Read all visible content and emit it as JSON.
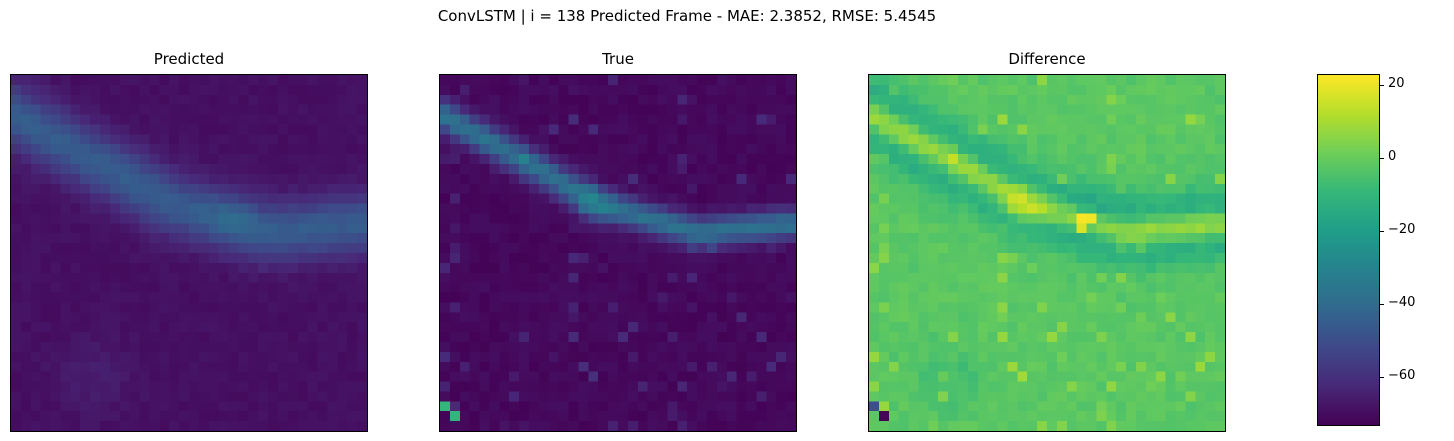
{
  "chart_data": {
    "type": "heatmap",
    "title": "ConvLSTM | i = 138 Predicted Frame - MAE: 2.3852, RMSE: 5.4545",
    "grid_size": [
      36,
      36
    ],
    "panels": [
      {
        "title": "Predicted",
        "value_range": [
          -70,
          -45
        ]
      },
      {
        "title": "True",
        "value_range": [
          -72,
          -20
        ]
      },
      {
        "title": "Difference",
        "value_range": [
          -70,
          22
        ]
      }
    ],
    "colorbar": {
      "colormap": "viridis",
      "vmin": -73,
      "vmax": 23,
      "ticks": [
        20,
        0,
        -20,
        -40,
        -60
      ],
      "tick_labels": [
        "20",
        "0",
        "−20",
        "−40",
        "−60"
      ]
    },
    "colors": {
      "viridis": [
        "#440154",
        "#482878",
        "#3e4989",
        "#31688e",
        "#26828e",
        "#1f9e89",
        "#35b779",
        "#6ece58",
        "#b5de2b",
        "#fde725"
      ]
    }
  }
}
